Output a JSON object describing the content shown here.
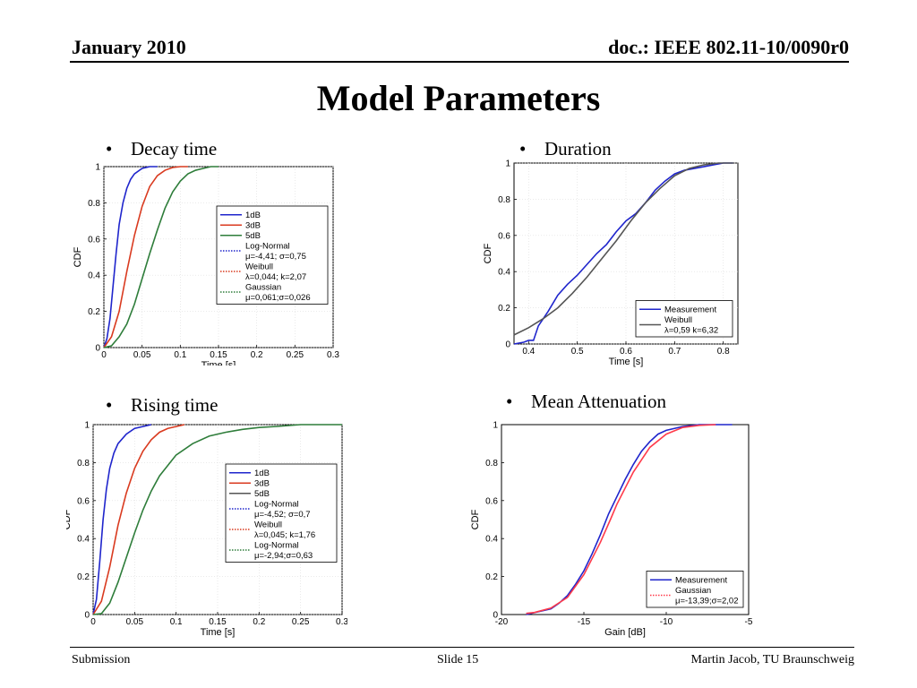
{
  "header": {
    "date": "January 2010",
    "doc": "doc.: IEEE 802.11-10/0090r0"
  },
  "title": "Model Parameters",
  "bullets": [
    "Decay time",
    "Duration",
    "Rising time",
    "Mean Attenuation"
  ],
  "footer": {
    "left": "Submission",
    "center": "Slide 15",
    "right": "Martin Jacob, TU Braunschweig"
  },
  "colors": {
    "blue": "#1f25cc",
    "red": "#d93a1f",
    "green": "#2e7d3a",
    "gray": "#555555",
    "magenta": "#ff3a4a"
  },
  "chart_data": [
    {
      "type": "line",
      "xlabel": "Time [s]",
      "ylabel": "CDF",
      "xlim": [
        0,
        0.3
      ],
      "ylim": [
        0,
        1
      ],
      "xticks": [
        0,
        0.05,
        0.1,
        0.15,
        0.2,
        0.25,
        0.3
      ],
      "yticks": [
        0,
        0.2,
        0.4,
        0.6,
        0.8,
        1
      ],
      "xtick_labels": [
        "0",
        "0.05",
        "0.1",
        "0.15",
        "0.2",
        "0.25",
        "0.3"
      ],
      "ytick_labels": [
        "0",
        "0.2",
        "0.4",
        "0.6",
        "0.8",
        "1"
      ],
      "grid": true,
      "legend_position": "right",
      "legend": [
        {
          "line1": "1dB",
          "color": "#1f25cc",
          "style": "solid"
        },
        {
          "line1": "3dB",
          "color": "#d93a1f",
          "style": "solid"
        },
        {
          "line1": "5dB",
          "color": "#2e7d3a",
          "style": "solid"
        },
        {
          "line1": "Log-Normal",
          "line2": "μ=-4,41; σ=0,75",
          "color": "#1f25cc",
          "style": "dotted"
        },
        {
          "line1": "Weibull",
          "line2": "λ=0,044; k=2,07",
          "color": "#d93a1f",
          "style": "dotted"
        },
        {
          "line1": "Gaussian",
          "line2": "μ=0,061;σ=0,026",
          "color": "#2e7d3a",
          "style": "dotted"
        }
      ],
      "series": [
        {
          "color": "#1f25cc",
          "x": [
            0,
            0.004,
            0.008,
            0.012,
            0.016,
            0.02,
            0.025,
            0.03,
            0.035,
            0.04,
            0.05,
            0.06,
            0.07
          ],
          "y": [
            0,
            0.05,
            0.16,
            0.34,
            0.52,
            0.68,
            0.8,
            0.88,
            0.93,
            0.96,
            0.99,
            1,
            1
          ]
        },
        {
          "color": "#d93a1f",
          "x": [
            0,
            0.01,
            0.02,
            0.03,
            0.04,
            0.05,
            0.06,
            0.07,
            0.08,
            0.09,
            0.1,
            0.11
          ],
          "y": [
            0,
            0.06,
            0.2,
            0.42,
            0.62,
            0.78,
            0.89,
            0.95,
            0.98,
            0.995,
            1,
            1
          ]
        },
        {
          "color": "#2e7d3a",
          "x": [
            0,
            0.01,
            0.02,
            0.03,
            0.04,
            0.05,
            0.06,
            0.07,
            0.08,
            0.09,
            0.1,
            0.11,
            0.12,
            0.13,
            0.14,
            0.15
          ],
          "y": [
            0,
            0.01,
            0.06,
            0.13,
            0.24,
            0.38,
            0.52,
            0.65,
            0.77,
            0.86,
            0.92,
            0.96,
            0.98,
            0.99,
            1,
            1
          ]
        }
      ]
    },
    {
      "type": "line",
      "xlabel": "Time [s]",
      "ylabel": "CDF",
      "xlim": [
        0.37,
        0.83
      ],
      "ylim": [
        0,
        1
      ],
      "xticks": [
        0.4,
        0.5,
        0.6,
        0.7,
        0.8
      ],
      "yticks": [
        0,
        0.2,
        0.4,
        0.6,
        0.8,
        1
      ],
      "xtick_labels": [
        "0.4",
        "0.5",
        "0.6",
        "0.7",
        "0.8"
      ],
      "ytick_labels": [
        "0",
        "0.2",
        "0.4",
        "0.6",
        "0.8",
        "1"
      ],
      "grid": true,
      "legend_position": "bottom-right",
      "legend": [
        {
          "line1": "Measurement",
          "color": "#1f25cc",
          "style": "solid"
        },
        {
          "line1": "Weibull",
          "line2": "λ=0,59 k=6,32",
          "color": "#555555",
          "style": "solid"
        }
      ],
      "series": [
        {
          "color": "#1f25cc",
          "x": [
            0.37,
            0.39,
            0.4,
            0.41,
            0.42,
            0.44,
            0.46,
            0.48,
            0.5,
            0.52,
            0.54,
            0.56,
            0.58,
            0.6,
            0.62,
            0.64,
            0.66,
            0.68,
            0.7,
            0.72,
            0.74,
            0.76,
            0.78,
            0.8,
            0.82
          ],
          "y": [
            0,
            0.01,
            0.02,
            0.02,
            0.1,
            0.18,
            0.27,
            0.33,
            0.38,
            0.44,
            0.5,
            0.55,
            0.62,
            0.68,
            0.72,
            0.78,
            0.85,
            0.9,
            0.94,
            0.96,
            0.97,
            0.98,
            0.99,
            1,
            1
          ]
        },
        {
          "color": "#555555",
          "x": [
            0.37,
            0.4,
            0.43,
            0.46,
            0.49,
            0.52,
            0.55,
            0.58,
            0.61,
            0.64,
            0.67,
            0.7,
            0.73,
            0.76,
            0.79,
            0.82
          ],
          "y": [
            0.05,
            0.09,
            0.14,
            0.2,
            0.28,
            0.37,
            0.47,
            0.57,
            0.68,
            0.78,
            0.86,
            0.93,
            0.97,
            0.99,
            1,
            1
          ]
        }
      ]
    },
    {
      "type": "line",
      "xlabel": "Time [s]",
      "ylabel": "CDF",
      "xlim": [
        0,
        0.3
      ],
      "ylim": [
        0,
        1
      ],
      "xticks": [
        0,
        0.05,
        0.1,
        0.15,
        0.2,
        0.25,
        0.3
      ],
      "yticks": [
        0,
        0.2,
        0.4,
        0.6,
        0.8,
        1
      ],
      "xtick_labels": [
        "0",
        "0.05",
        "0.1",
        "0.15",
        "0.2",
        "0.25",
        "0.3"
      ],
      "ytick_labels": [
        "0",
        "0.2",
        "0.4",
        "0.6",
        "0.8",
        "1"
      ],
      "grid": true,
      "legend_position": "right",
      "legend": [
        {
          "line1": "1dB",
          "color": "#1f25cc",
          "style": "solid"
        },
        {
          "line1": "3dB",
          "color": "#d93a1f",
          "style": "solid"
        },
        {
          "line1": "5dB",
          "color": "#555555",
          "style": "solid"
        },
        {
          "line1": "Log-Normal",
          "line2": "μ=-4,52; σ=0,7",
          "color": "#1f25cc",
          "style": "dotted"
        },
        {
          "line1": "Weibull",
          "line2": "λ=0,045; k=1,76",
          "color": "#d93a1f",
          "style": "dotted"
        },
        {
          "line1": "Log-Normal",
          "line2": "μ=-2,94;σ=0,63",
          "color": "#2e7d3a",
          "style": "dotted"
        }
      ],
      "series": [
        {
          "color": "#1f25cc",
          "x": [
            0,
            0.004,
            0.008,
            0.012,
            0.016,
            0.02,
            0.025,
            0.03,
            0.04,
            0.05,
            0.06,
            0.07
          ],
          "y": [
            0,
            0.08,
            0.28,
            0.5,
            0.66,
            0.77,
            0.85,
            0.9,
            0.95,
            0.98,
            0.99,
            1
          ]
        },
        {
          "color": "#d93a1f",
          "x": [
            0,
            0.01,
            0.02,
            0.03,
            0.04,
            0.05,
            0.06,
            0.07,
            0.08,
            0.09,
            0.1,
            0.11
          ],
          "y": [
            0,
            0.07,
            0.25,
            0.47,
            0.64,
            0.77,
            0.86,
            0.92,
            0.96,
            0.98,
            0.99,
            1
          ]
        },
        {
          "color": "#2e7d3a",
          "x": [
            0,
            0.01,
            0.02,
            0.03,
            0.04,
            0.05,
            0.06,
            0.07,
            0.08,
            0.1,
            0.12,
            0.14,
            0.16,
            0.18,
            0.2,
            0.22,
            0.25,
            0.3
          ],
          "y": [
            0,
            0.005,
            0.06,
            0.17,
            0.3,
            0.43,
            0.55,
            0.65,
            0.73,
            0.84,
            0.9,
            0.94,
            0.96,
            0.975,
            0.985,
            0.99,
            1,
            1
          ]
        }
      ]
    },
    {
      "type": "line",
      "xlabel": "Gain [dB]",
      "ylabel": "CDF",
      "xlim": [
        -20,
        -5
      ],
      "ylim": [
        0,
        1
      ],
      "xticks": [
        -20,
        -15,
        -10,
        -5
      ],
      "yticks": [
        0,
        0.2,
        0.4,
        0.6,
        0.8,
        1
      ],
      "xtick_labels": [
        "-20",
        "-15",
        "-10",
        "-5"
      ],
      "ytick_labels": [
        "0",
        "0.2",
        "0.4",
        "0.6",
        "0.8",
        "1"
      ],
      "grid": false,
      "legend_position": "bottom-right",
      "legend": [
        {
          "line1": "Measurement",
          "color": "#1f25cc",
          "style": "solid"
        },
        {
          "line1": "Gaussian",
          "line2": "μ=-13,39;σ=2,02",
          "color": "#ff3a4a",
          "style": "dotted"
        }
      ],
      "series": [
        {
          "color": "#1f25cc",
          "x": [
            -18.5,
            -18,
            -17.5,
            -17,
            -16.5,
            -16,
            -15.5,
            -15,
            -14.5,
            -14,
            -13.5,
            -13,
            -12.5,
            -12,
            -11.5,
            -11,
            -10.5,
            -10,
            -9.5,
            -9,
            -8,
            -7,
            -6
          ],
          "y": [
            0,
            0.01,
            0.02,
            0.03,
            0.06,
            0.1,
            0.16,
            0.23,
            0.32,
            0.42,
            0.53,
            0.62,
            0.71,
            0.79,
            0.86,
            0.91,
            0.95,
            0.97,
            0.98,
            0.99,
            1,
            1,
            1
          ]
        },
        {
          "color": "#ff3a4a",
          "x": [
            -18.5,
            -18,
            -17,
            -16,
            -15,
            -14,
            -13.39,
            -13,
            -12,
            -11,
            -10,
            -9,
            -8,
            -7
          ],
          "y": [
            0.006,
            0.011,
            0.034,
            0.09,
            0.21,
            0.38,
            0.5,
            0.58,
            0.75,
            0.88,
            0.95,
            0.985,
            0.996,
            1
          ]
        }
      ]
    }
  ]
}
